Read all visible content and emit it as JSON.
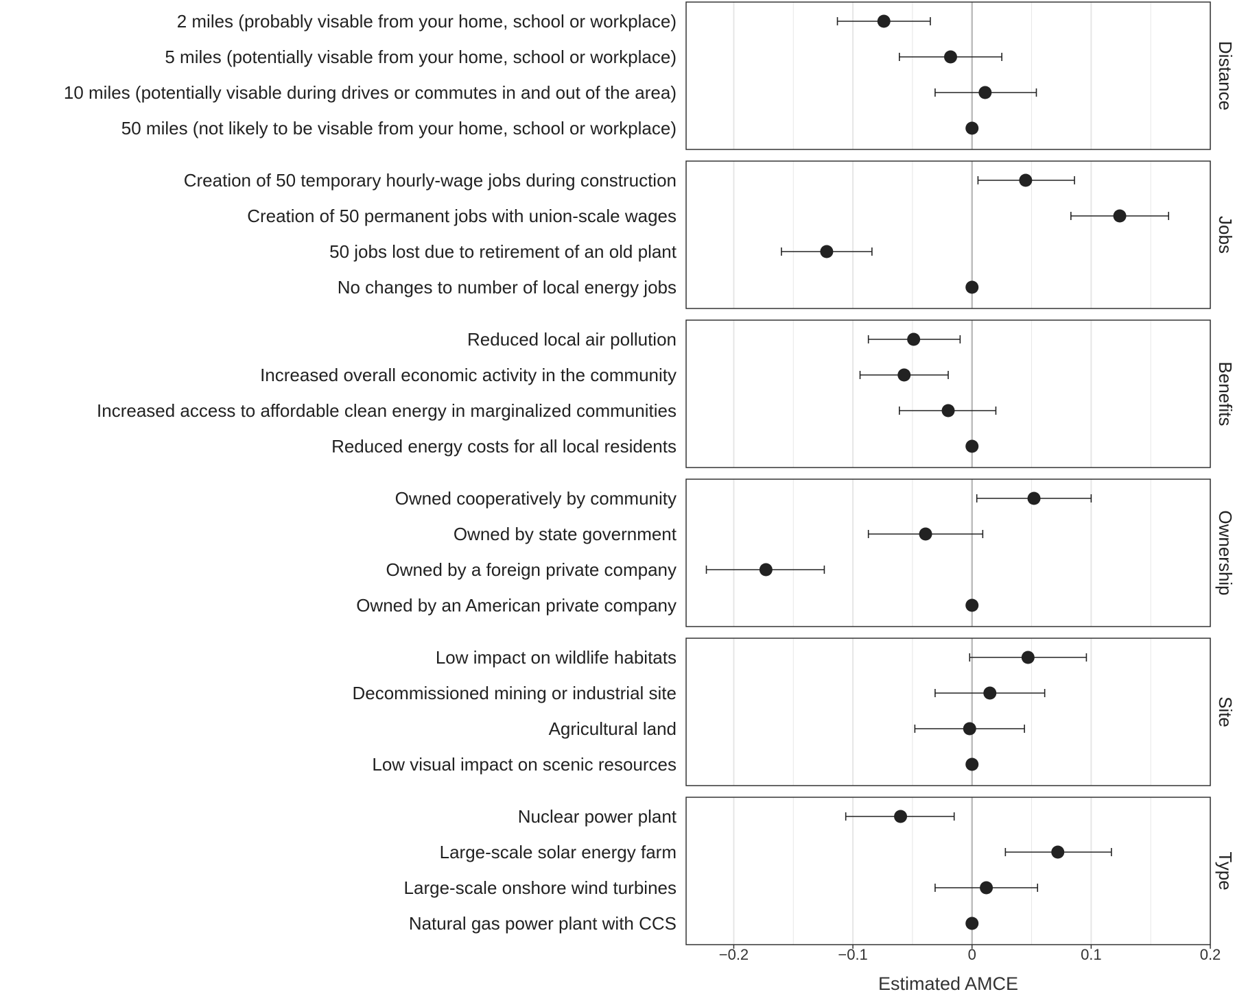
{
  "chart_data": {
    "type": "scatter",
    "subtype": "coefficient-plot-with-error-bars",
    "xlabel": "Estimated AMCE",
    "xlim": [
      -0.24,
      0.2
    ],
    "xticks": [
      -0.2,
      -0.1,
      0,
      0.1,
      0.2
    ],
    "xtick_labels": [
      "−0.2",
      "−0.1",
      "0",
      "0.1",
      "0.2"
    ],
    "reference_line": 0,
    "grid": true,
    "colors": {
      "point": "#222222",
      "grid": "#e6e6e6",
      "zero_line": "#bdbdbd",
      "panel_border": "#333333"
    },
    "facets": [
      {
        "name": "Distance",
        "rows": [
          {
            "label": "2 miles (probably visable from your home, school or workplace)",
            "estimate": -0.074,
            "ci_low": -0.113,
            "ci_high": -0.035
          },
          {
            "label": "5 miles (potentially visable from your home, school or workplace)",
            "estimate": -0.018,
            "ci_low": -0.061,
            "ci_high": 0.025
          },
          {
            "label": "10 miles (potentially visable during drives or commutes in and out of the area)",
            "estimate": 0.011,
            "ci_low": -0.031,
            "ci_high": 0.054
          },
          {
            "label": "50 miles (not likely to be visable from your home, school or workplace)",
            "estimate": 0,
            "ci_low": null,
            "ci_high": null
          }
        ]
      },
      {
        "name": "Jobs",
        "rows": [
          {
            "label": "Creation of 50 temporary hourly-wage jobs during construction",
            "estimate": 0.045,
            "ci_low": 0.005,
            "ci_high": 0.086
          },
          {
            "label": "Creation of 50 permanent jobs with union-scale wages",
            "estimate": 0.124,
            "ci_low": 0.083,
            "ci_high": 0.165
          },
          {
            "label": "50 jobs lost due to retirement of an old plant",
            "estimate": -0.122,
            "ci_low": -0.16,
            "ci_high": -0.084
          },
          {
            "label": "No changes to number of local energy jobs",
            "estimate": 0,
            "ci_low": null,
            "ci_high": null
          }
        ]
      },
      {
        "name": "Benefits",
        "rows": [
          {
            "label": "Reduced local air pollution",
            "estimate": -0.049,
            "ci_low": -0.087,
            "ci_high": -0.01
          },
          {
            "label": "Increased overall economic activity in the community",
            "estimate": -0.057,
            "ci_low": -0.094,
            "ci_high": -0.02
          },
          {
            "label": "Increased access to affordable clean energy in marginalized communities",
            "estimate": -0.02,
            "ci_low": -0.061,
            "ci_high": 0.02
          },
          {
            "label": "Reduced energy costs for all local residents",
            "estimate": 0,
            "ci_low": null,
            "ci_high": null
          }
        ]
      },
      {
        "name": "Ownership",
        "rows": [
          {
            "label": "Owned cooperatively by community",
            "estimate": 0.052,
            "ci_low": 0.004,
            "ci_high": 0.1
          },
          {
            "label": "Owned by state government",
            "estimate": -0.039,
            "ci_low": -0.087,
            "ci_high": 0.009
          },
          {
            "label": "Owned by a foreign private company",
            "estimate": -0.173,
            "ci_low": -0.223,
            "ci_high": -0.124
          },
          {
            "label": "Owned by an American private company",
            "estimate": 0,
            "ci_low": null,
            "ci_high": null
          }
        ]
      },
      {
        "name": "Site",
        "rows": [
          {
            "label": "Low impact on wildlife habitats",
            "estimate": 0.047,
            "ci_low": -0.002,
            "ci_high": 0.096
          },
          {
            "label": "Decommissioned mining or industrial site",
            "estimate": 0.015,
            "ci_low": -0.031,
            "ci_high": 0.061
          },
          {
            "label": "Agricultural land",
            "estimate": -0.002,
            "ci_low": -0.048,
            "ci_high": 0.044
          },
          {
            "label": "Low visual impact on scenic resources",
            "estimate": 0,
            "ci_low": null,
            "ci_high": null
          }
        ]
      },
      {
        "name": "Type",
        "rows": [
          {
            "label": "Nuclear power plant",
            "estimate": -0.06,
            "ci_low": -0.106,
            "ci_high": -0.015
          },
          {
            "label": "Large-scale solar energy farm",
            "estimate": 0.072,
            "ci_low": 0.028,
            "ci_high": 0.117
          },
          {
            "label": "Large-scale onshore wind turbines",
            "estimate": 0.012,
            "ci_low": -0.031,
            "ci_high": 0.055
          },
          {
            "label": "Natural gas power plant with CCS",
            "estimate": 0,
            "ci_low": null,
            "ci_high": null
          }
        ]
      }
    ]
  }
}
